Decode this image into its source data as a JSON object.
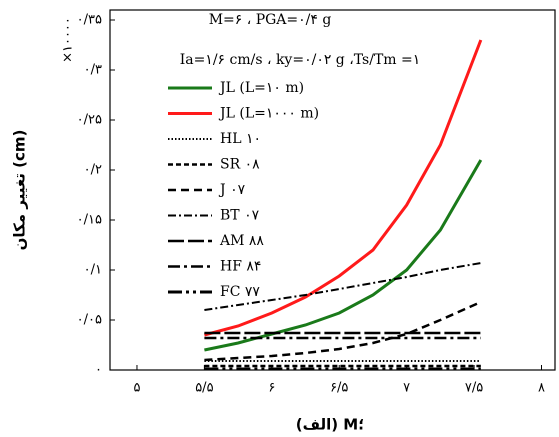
{
  "chart_data": {
    "type": "line",
    "y_label": "تغییر مکان (cm)",
    "y_multiplier": "×۱۰۰۰۰",
    "x_label": "(الف) M؛",
    "annotations": [
      "M=۶ ، PGA=۰/۴ g",
      "Ia=۱/۶ cm/s ، ky=۰/۰۲ g ،Ts/Tm =۱"
    ],
    "x": [
      5.5,
      5.75,
      6,
      6.25,
      6.5,
      6.75,
      7,
      7.25,
      7.55
    ],
    "series": [
      {
        "name": "JL (L=۱۰ m)",
        "color": "#1a7a1a",
        "dash": "none",
        "width": 3,
        "values": [
          0.02,
          0.027,
          0.036,
          0.045,
          0.057,
          0.075,
          0.1,
          0.14,
          0.21
        ]
      },
      {
        "name": "JL (L=۱۰۰۰ m)",
        "color": "#ff1a1a",
        "dash": "none",
        "width": 3,
        "values": [
          0.035,
          0.044,
          0.057,
          0.073,
          0.094,
          0.12,
          0.165,
          0.225,
          0.33
        ]
      },
      {
        "name": "HL ۱۰",
        "color": "#000000",
        "dash": "1.5,2",
        "width": 2,
        "values": [
          0.009,
          0.009,
          0.009,
          0.009,
          0.009,
          0.009,
          0.009,
          0.009,
          0.009
        ]
      },
      {
        "name": "SR ۰۸",
        "color": "#000000",
        "dash": "5,3",
        "width": 2.5,
        "values": [
          0.004,
          0.004,
          0.004,
          0.004,
          0.004,
          0.004,
          0.004,
          0.004,
          0.004
        ]
      },
      {
        "name": "J ۰۷",
        "color": "#000000",
        "dash": "8,5",
        "width": 2.5,
        "values": [
          0.01,
          0.012,
          0.014,
          0.017,
          0.021,
          0.027,
          0.036,
          0.05,
          0.068
        ]
      },
      {
        "name": "BT ۰۷",
        "color": "#000000",
        "dash": "8,3,2,3",
        "width": 2,
        "values": [
          0.06,
          0.065,
          0.07,
          0.075,
          0.081,
          0.087,
          0.093,
          0.1,
          0.107
        ]
      },
      {
        "name": "AM ۸۸",
        "color": "#000000",
        "dash": "16,4",
        "width": 2.5,
        "values": [
          0.037,
          0.037,
          0.037,
          0.037,
          0.037,
          0.037,
          0.037,
          0.037,
          0.037
        ]
      },
      {
        "name": "HF ۸۴",
        "color": "#000000",
        "dash": "12,4,3,4",
        "width": 2.5,
        "values": [
          0.032,
          0.032,
          0.032,
          0.032,
          0.032,
          0.032,
          0.032,
          0.032,
          0.032
        ]
      },
      {
        "name": "FC ۷۷",
        "color": "#000000",
        "dash": "14,4,3,4,3,4",
        "width": 3,
        "values": [
          0.001,
          0.001,
          0.001,
          0.001,
          0.001,
          0.001,
          0.001,
          0.001,
          0.001
        ]
      }
    ],
    "xlim": [
      4.8,
      8.1
    ],
    "xticks": [
      {
        "value": 5,
        "label": "۵"
      },
      {
        "value": 5.5,
        "label": "۵/۵"
      },
      {
        "value": 6,
        "label": "۶"
      },
      {
        "value": 6.5,
        "label": "۶/۵"
      },
      {
        "value": 7,
        "label": "۷"
      },
      {
        "value": 7.5,
        "label": "۷/۵"
      },
      {
        "value": 8,
        "label": "۸"
      }
    ],
    "ylim": [
      0,
      0.36
    ],
    "yticks": [
      {
        "value": 0,
        "label": "۰"
      },
      {
        "value": 0.05,
        "label": "۰/۰۵"
      },
      {
        "value": 0.1,
        "label": "۰/۱"
      },
      {
        "value": 0.15,
        "label": "۰/۱۵"
      },
      {
        "value": 0.2,
        "label": "۰/۲"
      },
      {
        "value": 0.25,
        "label": "۰/۲۵"
      },
      {
        "value": 0.3,
        "label": "۰/۳"
      },
      {
        "value": 0.35,
        "label": "۰/۳۵"
      }
    ],
    "grid": false
  }
}
